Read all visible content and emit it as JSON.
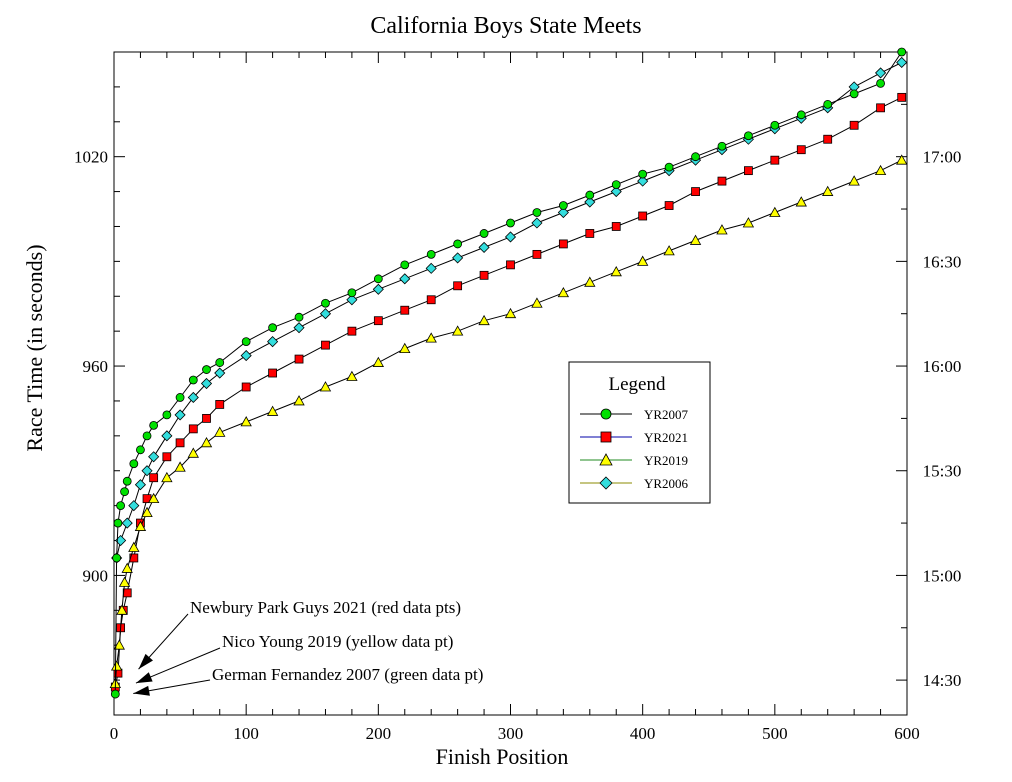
{
  "chart_data": {
    "type": "scatter",
    "title": "California Boys State Meets",
    "xlabel": "Finish Position",
    "ylabel": "Race Time (in seconds)",
    "xlim": [
      0,
      600
    ],
    "ylim": [
      860,
      1050
    ],
    "x_ticks": [
      0,
      100,
      200,
      300,
      400,
      500,
      600
    ],
    "y_ticks": [
      900,
      960,
      1020
    ],
    "right_axis_ticks": [
      {
        "value": 870,
        "label": "14:30"
      },
      {
        "value": 900,
        "label": "15:00"
      },
      {
        "value": 930,
        "label": "15:30"
      },
      {
        "value": 960,
        "label": "16:00"
      },
      {
        "value": 990,
        "label": "16:30"
      },
      {
        "value": 1020,
        "label": "17:00"
      }
    ],
    "grid": false,
    "legend": {
      "title": "Legend",
      "placement": "center-right"
    },
    "series": [
      {
        "name": "YR2007",
        "color": "#00e000",
        "marker": "circle",
        "points": [
          [
            1,
            866
          ],
          [
            2,
            905
          ],
          [
            3,
            915
          ],
          [
            5,
            920
          ],
          [
            8,
            924
          ],
          [
            10,
            927
          ],
          [
            15,
            932
          ],
          [
            20,
            936
          ],
          [
            25,
            940
          ],
          [
            30,
            943
          ],
          [
            40,
            946
          ],
          [
            50,
            951
          ],
          [
            60,
            956
          ],
          [
            70,
            959
          ],
          [
            80,
            961
          ],
          [
            100,
            967
          ],
          [
            120,
            971
          ],
          [
            140,
            974
          ],
          [
            160,
            978
          ],
          [
            180,
            981
          ],
          [
            200,
            985
          ],
          [
            220,
            989
          ],
          [
            240,
            992
          ],
          [
            260,
            995
          ],
          [
            280,
            998
          ],
          [
            300,
            1001
          ],
          [
            320,
            1004
          ],
          [
            340,
            1006
          ],
          [
            360,
            1009
          ],
          [
            380,
            1012
          ],
          [
            400,
            1015
          ],
          [
            420,
            1017
          ],
          [
            440,
            1020
          ],
          [
            460,
            1023
          ],
          [
            480,
            1026
          ],
          [
            500,
            1029
          ],
          [
            520,
            1032
          ],
          [
            540,
            1035
          ],
          [
            560,
            1038
          ],
          [
            580,
            1041
          ],
          [
            596,
            1050
          ]
        ]
      },
      {
        "name": "YR2021",
        "color": "#ff0000",
        "marker": "square",
        "points": [
          [
            1,
            868
          ],
          [
            3,
            872
          ],
          [
            5,
            885
          ],
          [
            7,
            890
          ],
          [
            10,
            895
          ],
          [
            15,
            905
          ],
          [
            20,
            915
          ],
          [
            25,
            922
          ],
          [
            30,
            928
          ],
          [
            40,
            934
          ],
          [
            50,
            938
          ],
          [
            60,
            942
          ],
          [
            70,
            945
          ],
          [
            80,
            949
          ],
          [
            100,
            954
          ],
          [
            120,
            958
          ],
          [
            140,
            962
          ],
          [
            160,
            966
          ],
          [
            180,
            970
          ],
          [
            200,
            973
          ],
          [
            220,
            976
          ],
          [
            240,
            979
          ],
          [
            260,
            983
          ],
          [
            280,
            986
          ],
          [
            300,
            989
          ],
          [
            320,
            992
          ],
          [
            340,
            995
          ],
          [
            360,
            998
          ],
          [
            380,
            1000
          ],
          [
            400,
            1003
          ],
          [
            420,
            1006
          ],
          [
            440,
            1010
          ],
          [
            460,
            1013
          ],
          [
            480,
            1016
          ],
          [
            500,
            1019
          ],
          [
            520,
            1022
          ],
          [
            540,
            1025
          ],
          [
            560,
            1029
          ],
          [
            580,
            1034
          ],
          [
            596,
            1037
          ]
        ]
      },
      {
        "name": "YR2019",
        "color": "#ffff00",
        "marker": "triangle",
        "points": [
          [
            1,
            869
          ],
          [
            2,
            874
          ],
          [
            4,
            880
          ],
          [
            6,
            890
          ],
          [
            8,
            898
          ],
          [
            10,
            902
          ],
          [
            15,
            908
          ],
          [
            20,
            914
          ],
          [
            25,
            918
          ],
          [
            30,
            922
          ],
          [
            40,
            928
          ],
          [
            50,
            931
          ],
          [
            60,
            935
          ],
          [
            70,
            938
          ],
          [
            80,
            941
          ],
          [
            100,
            944
          ],
          [
            120,
            947
          ],
          [
            140,
            950
          ],
          [
            160,
            954
          ],
          [
            180,
            957
          ],
          [
            200,
            961
          ],
          [
            220,
            965
          ],
          [
            240,
            968
          ],
          [
            260,
            970
          ],
          [
            280,
            973
          ],
          [
            300,
            975
          ],
          [
            320,
            978
          ],
          [
            340,
            981
          ],
          [
            360,
            984
          ],
          [
            380,
            987
          ],
          [
            400,
            990
          ],
          [
            420,
            993
          ],
          [
            440,
            996
          ],
          [
            460,
            999
          ],
          [
            480,
            1001
          ],
          [
            500,
            1004
          ],
          [
            520,
            1007
          ],
          [
            540,
            1010
          ],
          [
            560,
            1013
          ],
          [
            580,
            1016
          ],
          [
            596,
            1019
          ]
        ]
      },
      {
        "name": "YR2006",
        "color": "#33dddd",
        "marker": "diamond",
        "points": [
          [
            2,
            905
          ],
          [
            5,
            910
          ],
          [
            10,
            915
          ],
          [
            15,
            920
          ],
          [
            20,
            926
          ],
          [
            25,
            930
          ],
          [
            30,
            934
          ],
          [
            40,
            940
          ],
          [
            50,
            946
          ],
          [
            60,
            951
          ],
          [
            70,
            955
          ],
          [
            80,
            958
          ],
          [
            100,
            963
          ],
          [
            120,
            967
          ],
          [
            140,
            971
          ],
          [
            160,
            975
          ],
          [
            180,
            979
          ],
          [
            200,
            982
          ],
          [
            220,
            985
          ],
          [
            240,
            988
          ],
          [
            260,
            991
          ],
          [
            280,
            994
          ],
          [
            300,
            997
          ],
          [
            320,
            1001
          ],
          [
            340,
            1004
          ],
          [
            360,
            1007
          ],
          [
            380,
            1010
          ],
          [
            400,
            1013
          ],
          [
            420,
            1016
          ],
          [
            440,
            1019
          ],
          [
            460,
            1022
          ],
          [
            480,
            1025
          ],
          [
            500,
            1028
          ],
          [
            520,
            1031
          ],
          [
            540,
            1034
          ],
          [
            560,
            1040
          ],
          [
            580,
            1044
          ],
          [
            596,
            1047
          ]
        ]
      }
    ],
    "annotations": [
      {
        "text": "Newbury Park Guys 2021 (red data pts)",
        "target": [
          8,
          872
        ]
      },
      {
        "text": "Nico Young 2019 (yellow data pt)",
        "target": [
          6,
          868
        ]
      },
      {
        "text": "German Fernandez 2007 (green data pt)",
        "target": [
          4,
          865
        ]
      }
    ]
  }
}
